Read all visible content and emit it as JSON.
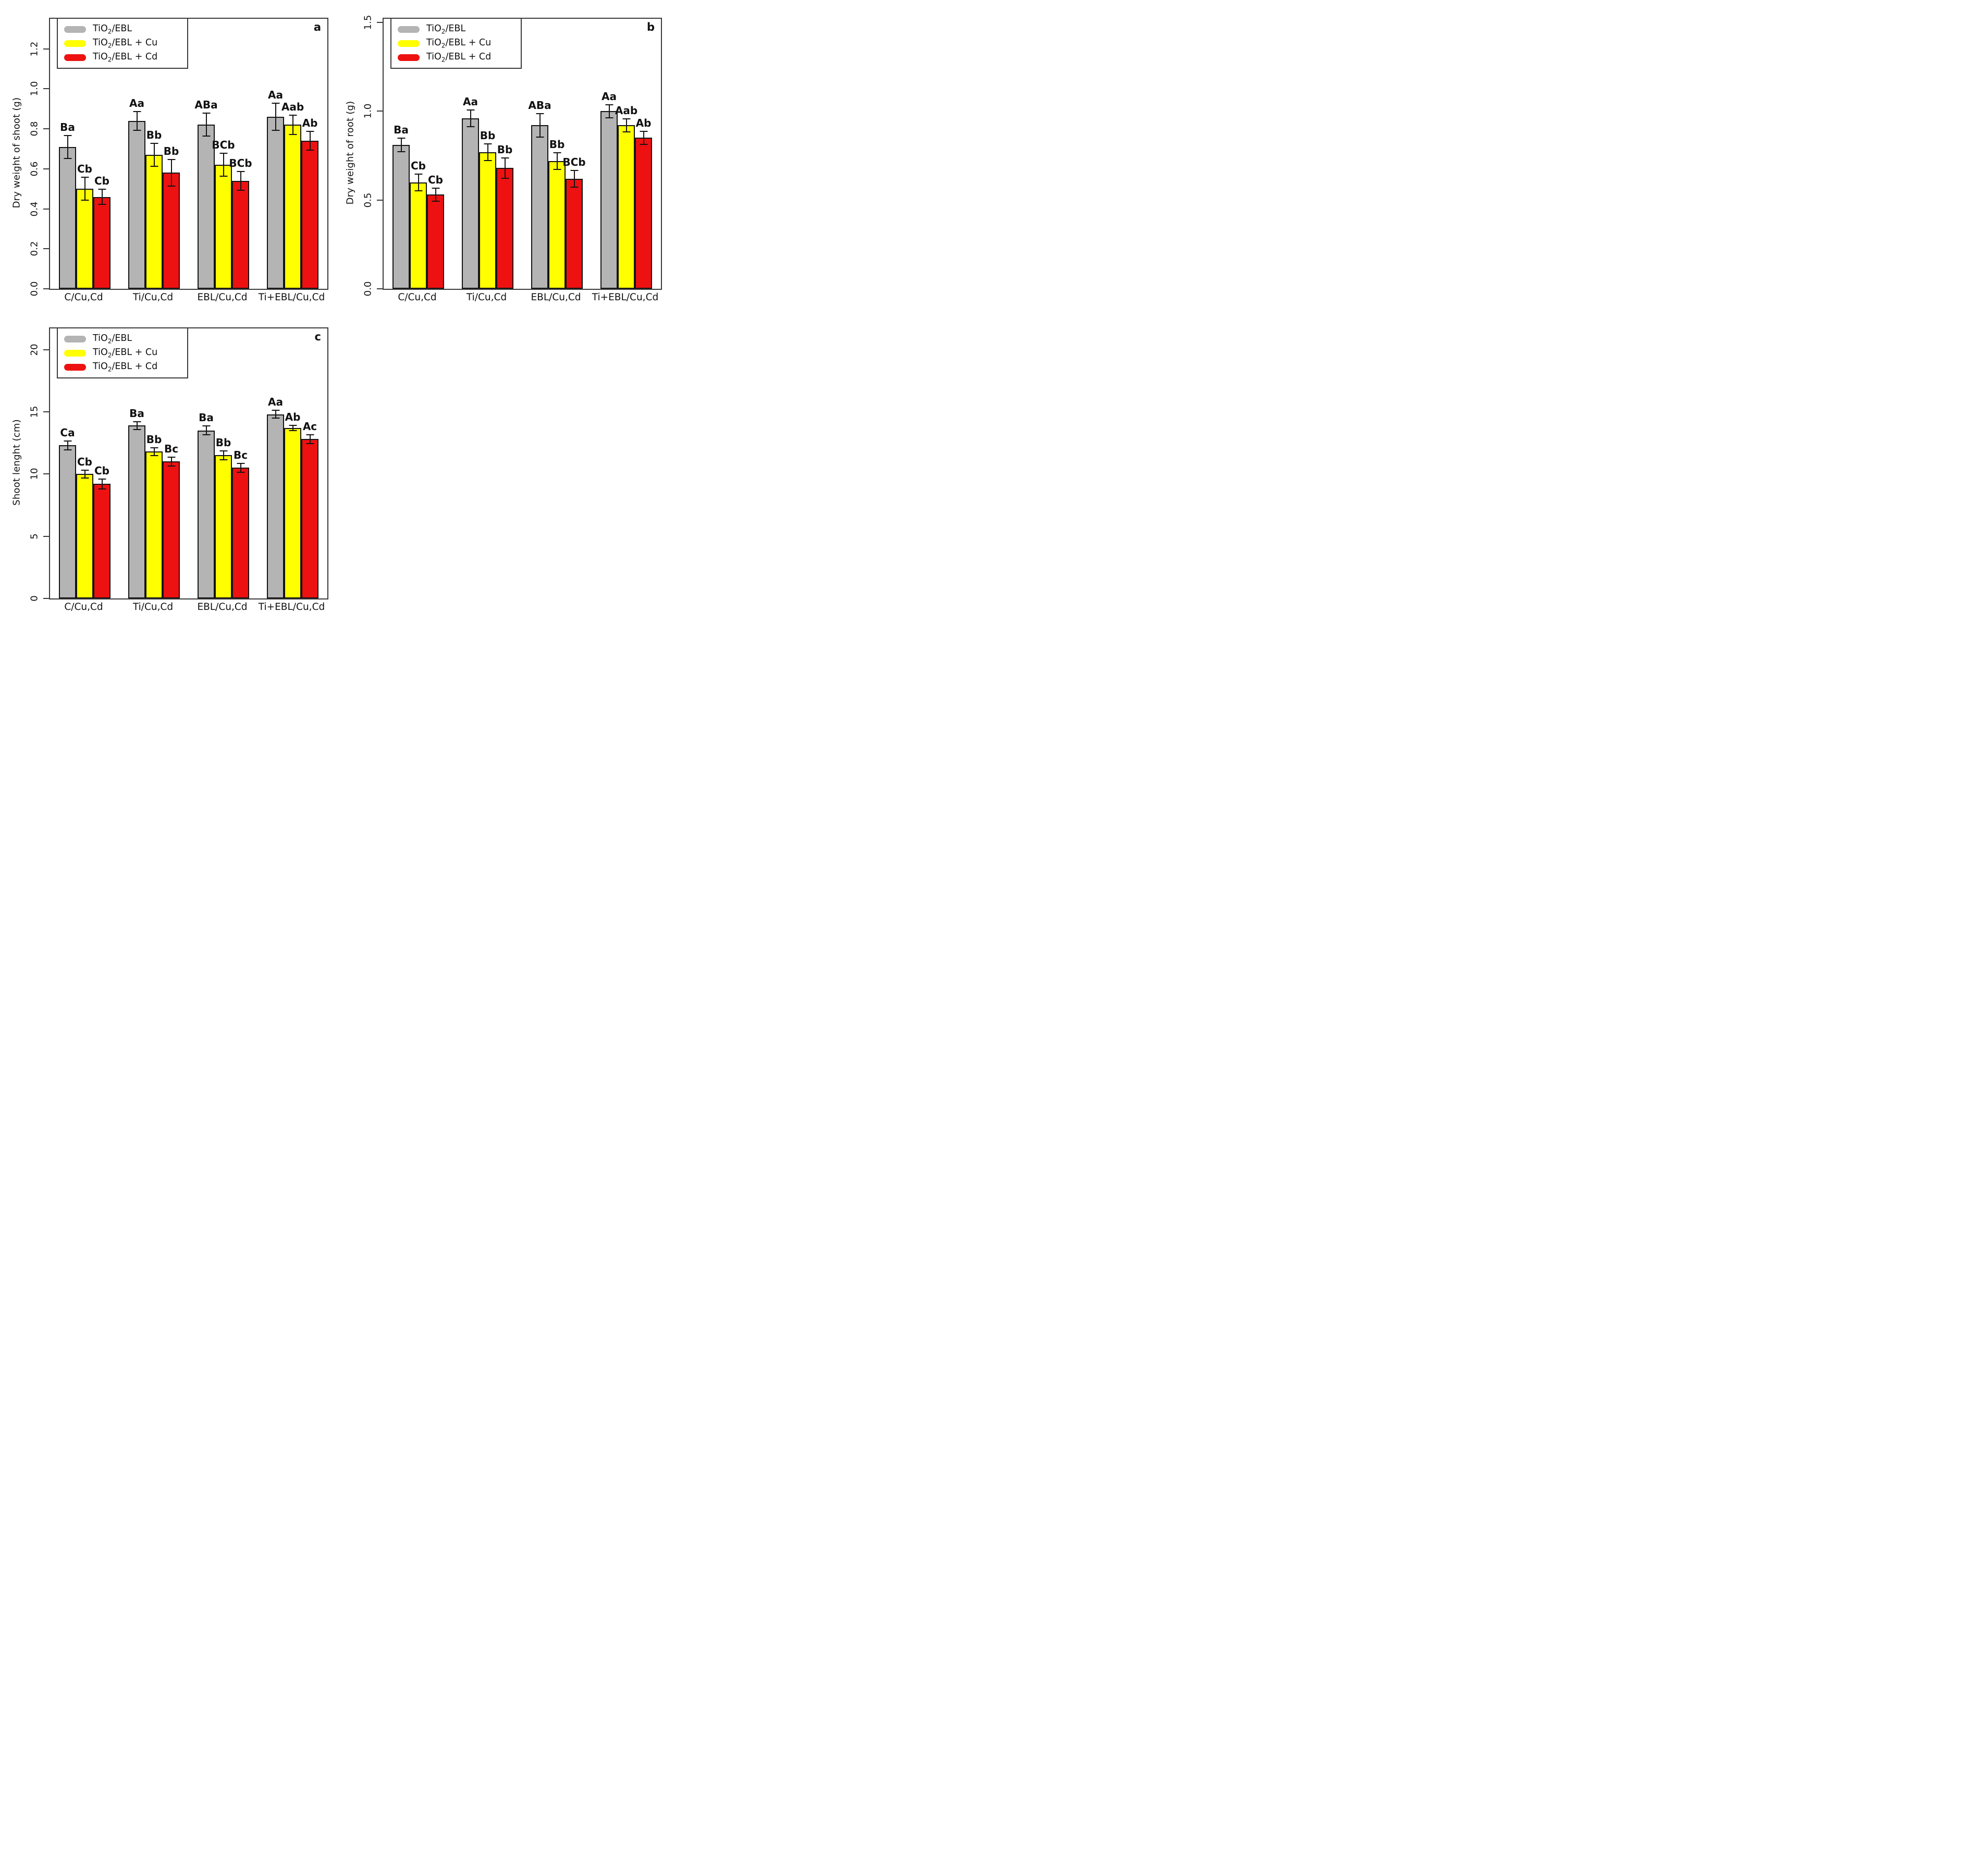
{
  "chart_data": [
    {
      "type": "bar",
      "panel_letter": "a",
      "ylabel": "Dry weight of shoot (g)",
      "xlabel": "",
      "ylim": [
        0,
        1.35
      ],
      "yticks": [
        0,
        0.2,
        0.4,
        0.6,
        0.8,
        1.0,
        1.2
      ],
      "ytick_labels": [
        "0.0",
        "0.2",
        "0.4",
        "0.6",
        "0.8",
        "1.0",
        "1.2"
      ],
      "categories": [
        "C/Cu,Cd",
        "Ti/Cu,Cd",
        "EBL/Cu,Cd",
        "Ti+EBL/Cu,Cd"
      ],
      "series": [
        {
          "name": "TiO2/EBL",
          "values": [
            0.71,
            0.84,
            0.82,
            0.86
          ],
          "errors": [
            0.06,
            0.05,
            0.06,
            0.07
          ],
          "sig_labels": [
            "Ba",
            "Aa",
            "ABa",
            "Aa"
          ]
        },
        {
          "name": "TiO2/EBL + Cu",
          "values": [
            0.5,
            0.67,
            0.62,
            0.82
          ],
          "errors": [
            0.06,
            0.06,
            0.06,
            0.05
          ],
          "sig_labels": [
            "Cb",
            "Bb",
            "BCb",
            "Aab"
          ]
        },
        {
          "name": "TiO2/EBL + Cd",
          "values": [
            0.46,
            0.58,
            0.54,
            0.74
          ],
          "errors": [
            0.04,
            0.07,
            0.05,
            0.05
          ],
          "sig_labels": [
            "Cb",
            "Bb",
            "BCb",
            "Ab"
          ]
        }
      ],
      "legend_position": "top-left",
      "grid": false
    },
    {
      "type": "bar",
      "panel_letter": "b",
      "ylabel": "Dry weight of root (g)",
      "xlabel": "",
      "ylim": [
        0,
        1.52
      ],
      "yticks": [
        0,
        0.5,
        1.0,
        1.5
      ],
      "ytick_labels": [
        "0.0",
        "0.5",
        "1.0",
        "1.5"
      ],
      "categories": [
        "C/Cu,Cd",
        "Ti/Cu,Cd",
        "EBL/Cu,Cd",
        "Ti+EBL/Cu,Cd"
      ],
      "series": [
        {
          "name": "TiO2/EBL",
          "values": [
            0.81,
            0.96,
            0.92,
            1.0
          ],
          "errors": [
            0.04,
            0.05,
            0.07,
            0.04
          ],
          "sig_labels": [
            "Ba",
            "Aa",
            "ABa",
            "Aa"
          ]
        },
        {
          "name": "TiO2/EBL + Cu",
          "values": [
            0.6,
            0.77,
            0.72,
            0.92
          ],
          "errors": [
            0.05,
            0.05,
            0.05,
            0.04
          ],
          "sig_labels": [
            "Cb",
            "Bb",
            "Bb",
            "Aab"
          ]
        },
        {
          "name": "TiO2/EBL + Cd",
          "values": [
            0.53,
            0.68,
            0.62,
            0.85
          ],
          "errors": [
            0.04,
            0.06,
            0.05,
            0.04
          ],
          "sig_labels": [
            "Cb",
            "Bb",
            "BCb",
            "Ab"
          ]
        }
      ],
      "legend_position": "top-left",
      "grid": false
    },
    {
      "type": "bar",
      "panel_letter": "c",
      "ylabel": "Shoot lenght (cm)",
      "xlabel": "",
      "ylim": [
        0,
        21.7
      ],
      "yticks": [
        0,
        5,
        10,
        15,
        20
      ],
      "ytick_labels": [
        "0",
        "5",
        "10",
        "15",
        "20"
      ],
      "categories": [
        "C/Cu,Cd",
        "Ti/Cu,Cd",
        "EBL/Cu,Cd",
        "Ti+EBL/Cu,Cd"
      ],
      "series": [
        {
          "name": "TiO2/EBL",
          "values": [
            12.3,
            13.9,
            13.5,
            14.8
          ],
          "errors": [
            0.4,
            0.35,
            0.4,
            0.35
          ],
          "sig_labels": [
            "Ca",
            "Ba",
            "Ba",
            "Aa"
          ]
        },
        {
          "name": "TiO2/EBL + Cu",
          "values": [
            10.0,
            11.8,
            11.5,
            13.7
          ],
          "errors": [
            0.35,
            0.35,
            0.4,
            0.25
          ],
          "sig_labels": [
            "Cb",
            "Bb",
            "Bb",
            "Ab"
          ]
        },
        {
          "name": "TiO2/EBL + Cd",
          "values": [
            9.2,
            11.0,
            10.5,
            12.8
          ],
          "errors": [
            0.45,
            0.4,
            0.4,
            0.4
          ],
          "sig_labels": [
            "Cb",
            "Bc",
            "Bc",
            "Ac"
          ]
        }
      ],
      "legend_position": "top-left",
      "grid": false
    }
  ],
  "legend": {
    "items": [
      {
        "prefix": "TiO",
        "sub": "2",
        "suffix": "/EBL",
        "color": "#b4b4b4"
      },
      {
        "prefix": "TiO",
        "sub": "2",
        "suffix": "/EBL + Cu",
        "color": "#ffff00"
      },
      {
        "prefix": "TiO",
        "sub": "2",
        "suffix": "/EBL + Cd",
        "color": "#ee1111"
      }
    ]
  },
  "colors": {
    "bar_border": "#141414",
    "axis": "#3b3b3b",
    "background": "#ffffff"
  }
}
